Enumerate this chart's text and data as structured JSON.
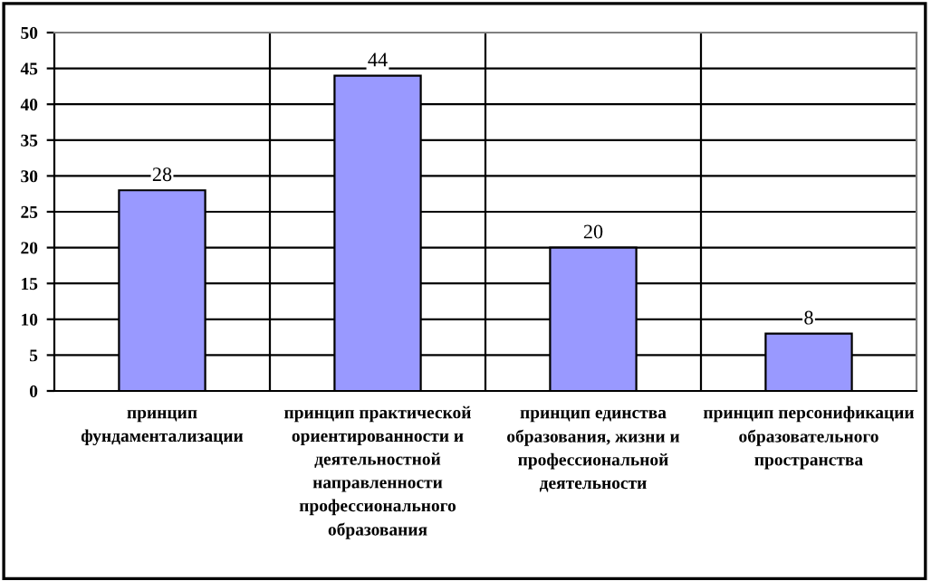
{
  "chart_data": {
    "type": "bar",
    "categories": [
      "принцип фундаментализации",
      "принцип практической ориентированности и деятельностной направленности профессионального образования",
      "принцип единства образования, жизни и профессиональной деятельности",
      "принцип персонификации образовательного пространства"
    ],
    "values": [
      28,
      44,
      20,
      8
    ],
    "color": "#9999ff",
    "ylim": [
      0,
      50
    ],
    "yticks": [
      0,
      5,
      10,
      15,
      20,
      25,
      30,
      35,
      40,
      45,
      50
    ],
    "grid": true,
    "data_labels": true
  }
}
